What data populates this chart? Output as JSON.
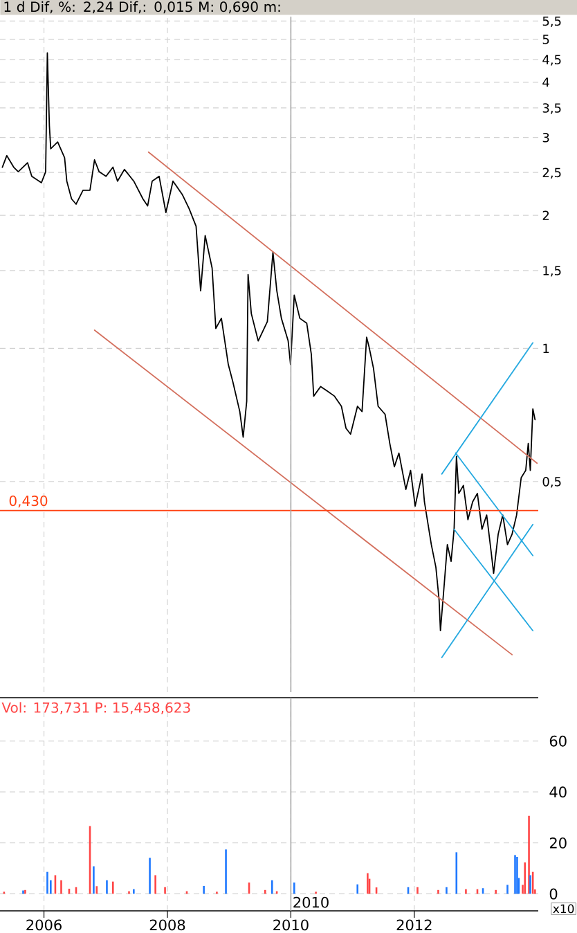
{
  "chart_data": [
    {
      "type": "line",
      "title": "1 d Dif, %: 2,24 Dif,: 0,015 M: 0,690 m:",
      "log": "y",
      "grid": true,
      "tick_labels": "y",
      "xlim": [
        "2005-04-16",
        "2014-01-04"
      ],
      "xticks": [
        "2006",
        "2008",
        "2010",
        "2012"
      ],
      "ylim": [
        0.167,
        5.63
      ],
      "yticks": [
        {
          "value": 0.5,
          "label": "0,5"
        },
        1,
        {
          "value": 1.5,
          "label": "1,5"
        },
        2,
        {
          "value": 2.5,
          "label": "2,5"
        },
        3,
        {
          "value": 3.5,
          "label": "3,5"
        },
        4,
        {
          "value": 4.5,
          "label": "4,5"
        },
        5,
        {
          "value": 5.5,
          "label": "5,5"
        }
      ],
      "series": [
        {
          "color": "#000000",
          "x": [
            "2005-04-30",
            "2005-05-26",
            "2005-07-06",
            "2005-08-02",
            "2005-09-26",
            "2005-10-21",
            "2005-12-17",
            "2006-01-11",
            "2006-01-21",
            "2006-02-02",
            "2006-02-10",
            "2006-03-23",
            "2006-05-03",
            "2006-05-16",
            "2006-06-13",
            "2006-07-10",
            "2006-08-20",
            "2006-09-30",
            "2006-10-27",
            "2006-11-23",
            "2007-01-03",
            "2007-02-13",
            "2007-03-12",
            "2007-04-22",
            "2007-06-16",
            "2007-08-09",
            "2007-09-06",
            "2007-10-03",
            "2007-11-13",
            "2007-12-23",
            "2008-02-03",
            "2008-03-29",
            "2008-05-09",
            "2008-06-19",
            "2008-07-16",
            "2008-08-12",
            "2008-09-22",
            "2008-10-14",
            "2008-11-16",
            "2008-12-27",
            "2009-01-23",
            "2009-03-05",
            "2009-03-25",
            "2009-04-15",
            "2009-04-23",
            "2009-05-12",
            "2009-06-22",
            "2009-08-15",
            "2009-09-17",
            "2009-10-10",
            "2009-11-06",
            "2009-12-16",
            "2009-12-30",
            "2010-01-21",
            "2010-02-23",
            "2010-04-05",
            "2010-05-02",
            "2010-05-16",
            "2010-06-26",
            "2010-08-06",
            "2010-09-16",
            "2010-10-27",
            "2010-11-23",
            "2010-12-20",
            "2011-01-30",
            "2011-02-26",
            "2011-03-25",
            "2011-04-08",
            "2011-05-05",
            "2011-06-01",
            "2011-07-12",
            "2011-08-09",
            "2011-09-05",
            "2011-10-02",
            "2011-11-12",
            "2011-12-10",
            "2012-01-06",
            "2012-02-16",
            "2012-03-01",
            "2012-04-11",
            "2012-05-08",
            "2012-05-27",
            "2012-06-04",
            "2012-06-24",
            "2012-07-15",
            "2012-08-06",
            "2012-08-24",
            "2012-09-07",
            "2012-09-21",
            "2012-10-18",
            "2012-11-14",
            "2012-12-12",
            "2013-01-09",
            "2013-02-05",
            "2013-03-05",
            "2013-04-01",
            "2013-04-15",
            "2013-05-12",
            "2013-06-08",
            "2013-07-06",
            "2013-08-02",
            "2013-08-29",
            "2013-09-25",
            "2013-10-22",
            "2013-11-06",
            "2013-11-18",
            "2013-12-03",
            "2013-12-16"
          ],
          "values": [
            2.57,
            2.73,
            2.57,
            2.51,
            2.63,
            2.45,
            2.37,
            2.51,
            4.66,
            3.19,
            2.83,
            2.93,
            2.7,
            2.39,
            2.18,
            2.12,
            2.28,
            2.28,
            2.67,
            2.51,
            2.45,
            2.57,
            2.39,
            2.54,
            2.39,
            2.18,
            2.1,
            2.39,
            2.45,
            2.03,
            2.39,
            2.23,
            2.07,
            1.89,
            1.35,
            1.8,
            1.52,
            1.11,
            1.17,
            0.92,
            0.84,
            0.72,
            0.63,
            0.76,
            1.47,
            1.2,
            1.04,
            1.15,
            1.65,
            1.35,
            1.17,
            1.04,
            0.92,
            1.32,
            1.17,
            1.14,
            0.97,
            0.78,
            0.82,
            0.8,
            0.78,
            0.74,
            0.66,
            0.64,
            0.74,
            0.72,
            1.06,
            1.01,
            0.9,
            0.74,
            0.71,
            0.61,
            0.54,
            0.58,
            0.48,
            0.53,
            0.44,
            0.52,
            0.45,
            0.36,
            0.32,
            0.27,
            0.23,
            0.285,
            0.36,
            0.33,
            0.39,
            0.57,
            0.47,
            0.49,
            0.41,
            0.45,
            0.47,
            0.39,
            0.42,
            0.345,
            0.31,
            0.38,
            0.42,
            0.36,
            0.38,
            0.42,
            0.51,
            0.53,
            0.61,
            0.53,
            0.73,
            0.69
          ]
        },
        {
          "type": "line",
          "color": "#d4705e",
          "x": [
            "2007-09-11",
            "2013-12-28"
          ],
          "values": [
            2.78,
            0.55
          ]
        },
        {
          "type": "line",
          "color": "#d4705e",
          "x": [
            "2006-10-27",
            "2013-08-02"
          ],
          "values": [
            1.1,
            0.203
          ]
        },
        {
          "type": "line",
          "color": "#25a9e0",
          "x": [
            "2012-06-12",
            "2013-12-03"
          ],
          "values": [
            0.52,
            1.03
          ]
        },
        {
          "type": "line",
          "color": "#25a9e0",
          "x": [
            "2012-06-12",
            "2013-12-03"
          ],
          "values": [
            0.2,
            0.4
          ]
        },
        {
          "type": "line",
          "color": "#25a9e0",
          "x": [
            "2012-09-02",
            "2013-12-03"
          ],
          "values": [
            0.58,
            0.34
          ]
        },
        {
          "type": "line",
          "color": "#25a9e0",
          "x": [
            "2012-08-24",
            "2013-12-03"
          ],
          "values": [
            0.39,
            0.23
          ]
        }
      ],
      "ref_lines": [
        {
          "axis": "y",
          "value": 0.43,
          "label": "0,430",
          "color": "#ff4010"
        },
        {
          "axis": "x",
          "value": "2010",
          "color": "#a8a8a8"
        }
      ]
    },
    {
      "type": "bar",
      "title": "Vol: 173,731 P: 15,458,623",
      "grid": true,
      "xlim": [
        "2005-04-16",
        "2014-01-04"
      ],
      "xticks": [
        {
          "value": "2006",
          "label": "2006"
        },
        {
          "value": "2008",
          "label": "2008"
        },
        {
          "value": "2010",
          "label": "2010"
        },
        {
          "value": "2012",
          "label": "2012"
        }
      ],
      "ylim": [
        -6.7,
        77
      ],
      "yticks": [
        0,
        20,
        40,
        60
      ],
      "x": [
        "2005-05-10",
        "2005-08-31",
        "2005-09-12",
        "2006-01-21",
        "2006-02-10",
        "2006-03-09",
        "2006-04-13",
        "2006-05-30",
        "2006-07-10",
        "2006-09-30",
        "2006-10-22",
        "2006-11-09",
        "2007-01-08",
        "2007-02-13",
        "2007-05-19",
        "2007-06-16",
        "2007-09-19",
        "2007-10-22",
        "2007-12-18",
        "2008-04-25",
        "2008-08-04",
        "2008-10-20",
        "2008-12-13",
        "2009-04-29",
        "2009-08-02",
        "2009-09-12",
        "2009-10-10",
        "2010-01-21",
        "2010-05-29",
        "2011-01-30",
        "2011-03-31",
        "2011-04-11",
        "2011-05-22",
        "2011-11-26",
        "2012-01-20",
        "2012-05-22",
        "2012-07-10",
        "2012-09-07",
        "2012-11-02",
        "2013-01-09",
        "2013-02-11",
        "2013-04-28",
        "2013-07-06",
        "2013-08-20",
        "2013-09-01",
        "2013-09-11",
        "2013-10-04",
        "2013-10-17",
        "2013-11-10",
        "2013-11-18",
        "2013-12-03",
        "2013-12-16"
      ],
      "values": [
        0.8,
        1.3,
        1.5,
        8.6,
        5.3,
        7.3,
        5.3,
        2.0,
        2.6,
        26.6,
        10.8,
        3.0,
        5.3,
        4.8,
        1.0,
        1.8,
        14.1,
        7.3,
        2.6,
        1.0,
        3.1,
        0.8,
        17.4,
        4.4,
        1.5,
        5.3,
        1.0,
        4.4,
        0.8,
        3.7,
        8.1,
        5.9,
        2.5,
        2.6,
        2.6,
        1.5,
        2.6,
        16.3,
        1.8,
        1.8,
        2.2,
        1.5,
        3.5,
        15.2,
        14.5,
        6.2,
        3.5,
        12.3,
        30.6,
        7.3,
        8.6,
        1.7
      ],
      "colors": [
        "#ff4545",
        "#1e78ff",
        "#ff4545",
        "#1e78ff",
        "#1e78ff",
        "#ff4545",
        "#ff4545",
        "#ff4545",
        "#ff4545",
        "#ff4545",
        "#1e78ff",
        "#ff4545",
        "#1e78ff",
        "#ff4545",
        "#ff4545",
        "#1e78ff",
        "#1e78ff",
        "#ff4545",
        "#ff4545",
        "#ff4545",
        "#1e78ff",
        "#ff4545",
        "#1e78ff",
        "#ff4545",
        "#ff4545",
        "#1e78ff",
        "#ff4545",
        "#1e78ff",
        "#ff4545",
        "#1e78ff",
        "#ff4545",
        "#ff4545",
        "#ff4545",
        "#1e78ff",
        "#ff4545",
        "#ff4545",
        "#1e78ff",
        "#1e78ff",
        "#ff4545",
        "#ff4545",
        "#1e78ff",
        "#ff4545",
        "#1e78ff",
        "#1e78ff",
        "#1e78ff",
        "#1e78ff",
        "#ff4545",
        "#ff4545",
        "#ff4545",
        "#1e78ff",
        "#ff4545",
        "#ff4545"
      ],
      "ref_lines": [
        {
          "axis": "x",
          "value": "2010",
          "label": "2010",
          "color": "#a8a8a8"
        }
      ],
      "annotations": [
        "x10"
      ]
    }
  ]
}
